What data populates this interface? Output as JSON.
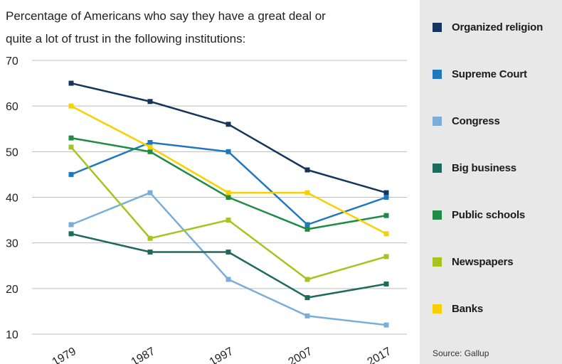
{
  "chart_data": {
    "type": "line",
    "title_lines": [
      "Percentage of Americans who say they have a great deal or",
      "quite a lot of trust in the following institutions:"
    ],
    "x": [
      "1979",
      "1987",
      "1997",
      "2007",
      "2017"
    ],
    "ylim": [
      10,
      70
    ],
    "yticks": [
      10,
      20,
      30,
      40,
      50,
      60,
      70
    ],
    "grid": true,
    "legend_position": "right",
    "series": [
      {
        "name": "Organized religion",
        "color": "#14365d",
        "values": [
          65,
          61,
          56,
          46,
          41
        ]
      },
      {
        "name": "Supreme Court",
        "color": "#1f77c0",
        "values": [
          45,
          52,
          50,
          34,
          40
        ]
      },
      {
        "name": "Congress",
        "color": "#7aaed8",
        "values": [
          34,
          41,
          22,
          14,
          12
        ]
      },
      {
        "name": "Big business",
        "color": "#1c6b5e",
        "values": [
          32,
          28,
          28,
          18,
          21
        ]
      },
      {
        "name": "Public schools",
        "color": "#1e8c45",
        "values": [
          53,
          50,
          40,
          33,
          36
        ]
      },
      {
        "name": "Newspapers",
        "color": "#a6c41f",
        "values": [
          51,
          31,
          35,
          22,
          27
        ]
      },
      {
        "name": "Banks",
        "color": "#f6d000",
        "values": [
          60,
          51,
          41,
          41,
          32
        ]
      }
    ],
    "source": "Source: Gallup"
  }
}
